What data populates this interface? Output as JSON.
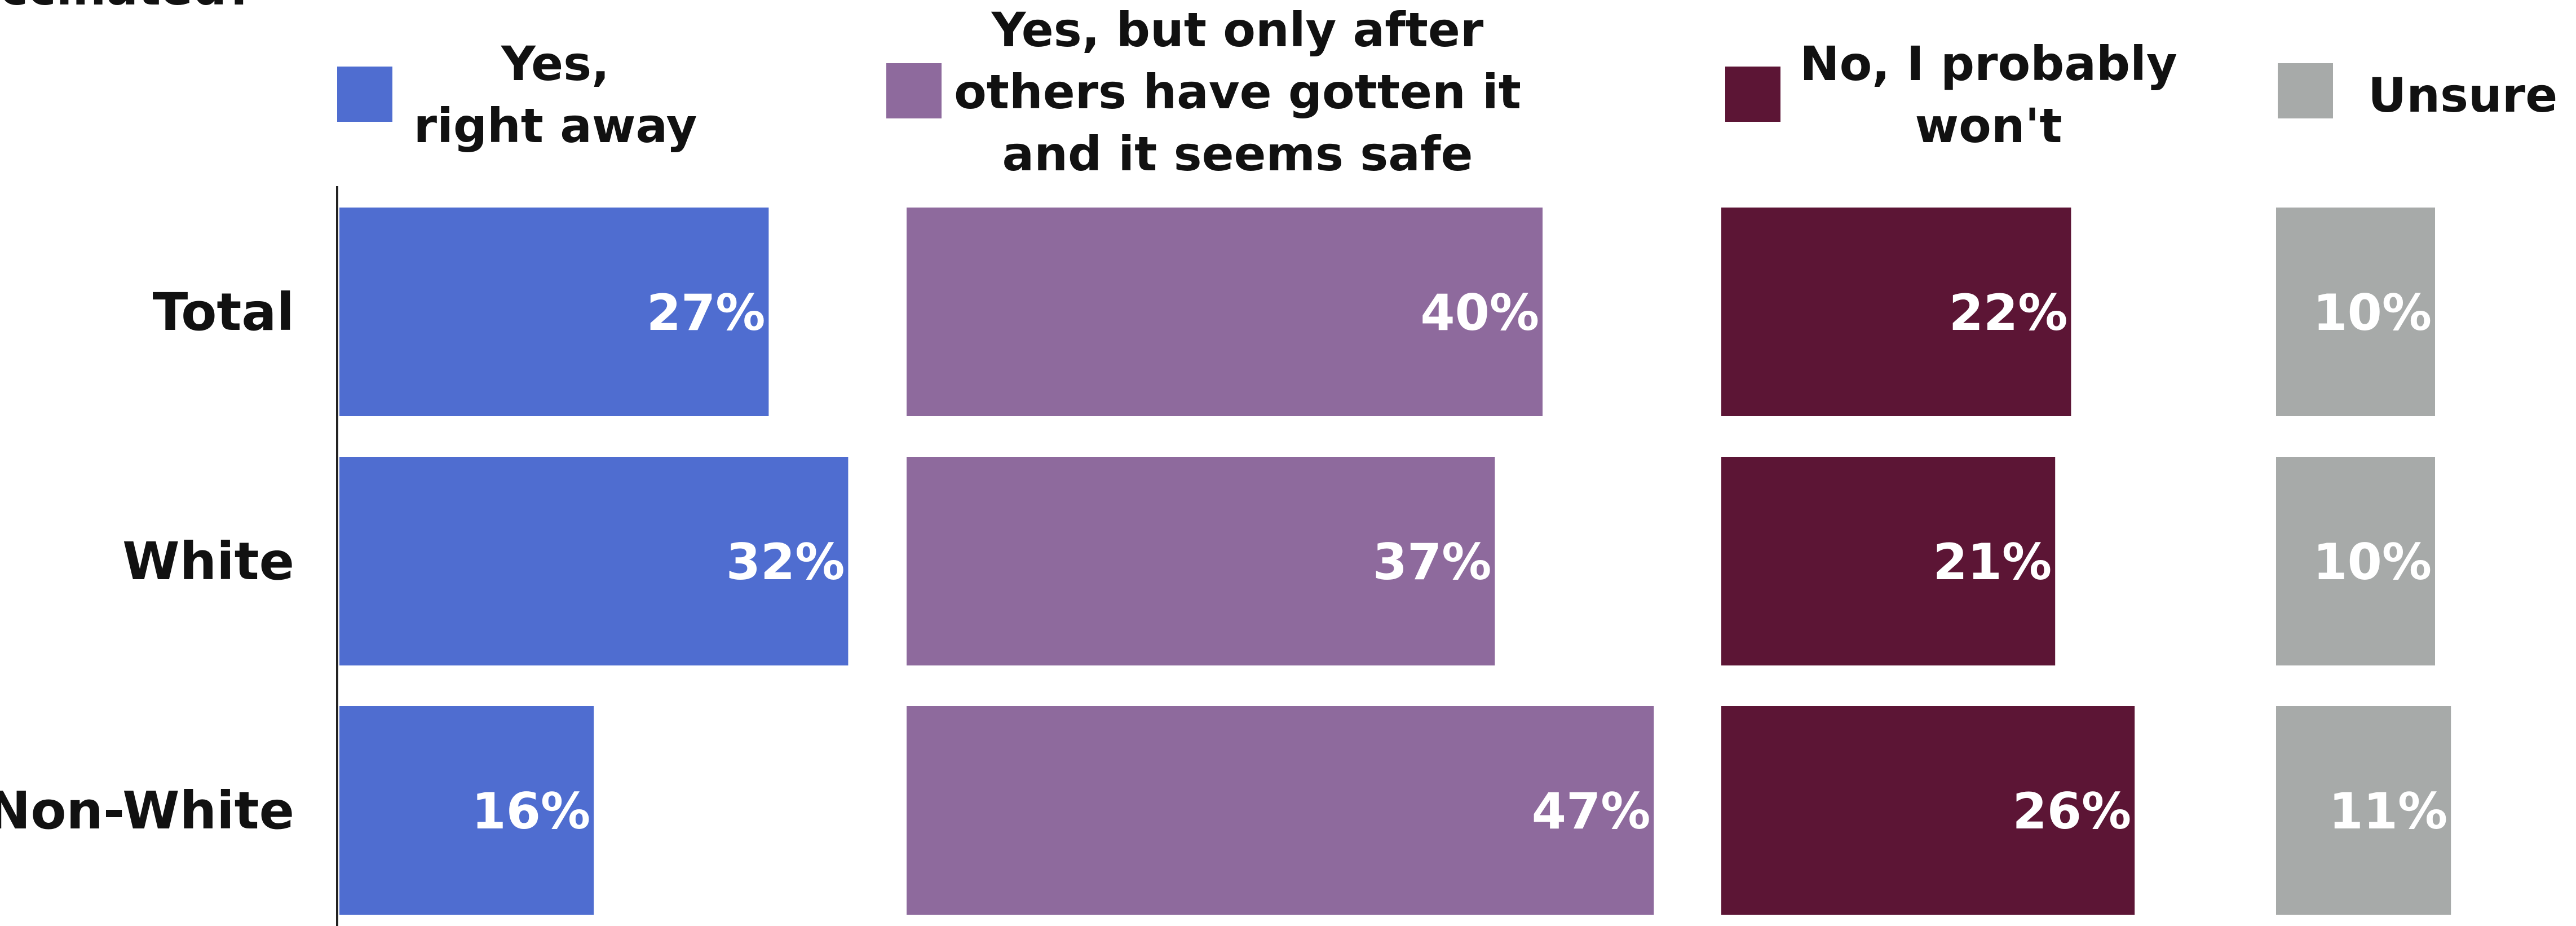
{
  "chart_data": {
    "type": "bar",
    "title_fragment": "ccinated?",
    "categories": [
      "Total",
      "White",
      "Non-White"
    ],
    "series": [
      {
        "name": [
          "Yes,",
          "right away"
        ],
        "color": "#4f6dd0",
        "values": [
          27,
          32,
          16
        ]
      },
      {
        "name": [
          "Yes, but only after",
          "others have gotten it",
          "and it seems safe"
        ],
        "color": "#8e6a9d",
        "values": [
          40,
          37,
          47
        ]
      },
      {
        "name": [
          "No, I probably",
          "won't"
        ],
        "color": "#5c1535",
        "values": [
          22,
          21,
          26
        ]
      },
      {
        "name": [
          "Unsure"
        ],
        "color": "#a7aaa9",
        "values": [
          10,
          10,
          11
        ]
      }
    ],
    "value_suffix": "%",
    "legend_placement": "top",
    "grid": false
  }
}
